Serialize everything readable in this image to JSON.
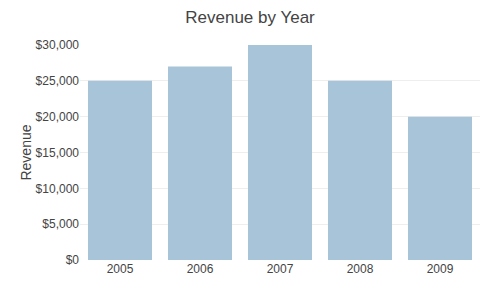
{
  "chart_data": {
    "type": "bar",
    "title": "Revenue by Year",
    "categories": [
      "2005",
      "2006",
      "2007",
      "2008",
      "2009"
    ],
    "values": [
      25000,
      27000,
      30000,
      25000,
      20000
    ],
    "color": "#a8c4d8",
    "ylabel": "Revenue",
    "ylim": [
      0,
      30000
    ],
    "yticks": [
      {
        "value": 0,
        "label": "$0"
      },
      {
        "value": 5000,
        "label": "$5,000"
      },
      {
        "value": 10000,
        "label": "$10,000"
      },
      {
        "value": 15000,
        "label": "$15,000"
      },
      {
        "value": 20000,
        "label": "$20,000"
      },
      {
        "value": 25000,
        "label": "$25,000"
      },
      {
        "value": 30000,
        "label": "$30,000"
      }
    ],
    "grid": true
  }
}
